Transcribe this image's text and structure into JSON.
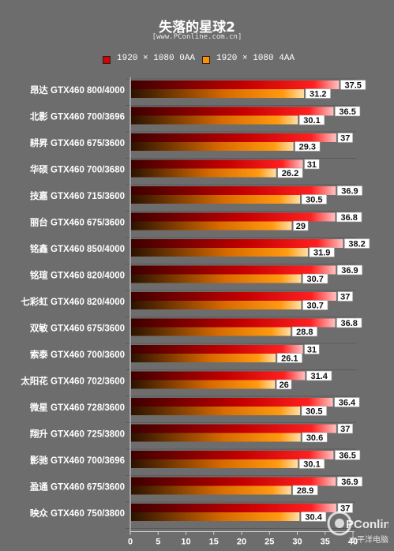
{
  "chart_data": {
    "type": "bar",
    "title": "失落的星球2",
    "subtitle": "[www.PConline.com.cn]",
    "categories": [
      "昂达 GTX460 800/4000",
      "北影 GTX460 700/3696",
      "耕昇 GTX460 675/3600",
      "华硕 GTX460 700/3680",
      "技嘉 GTX460 715/3600",
      "丽台 GTX460 675/3600",
      "铭鑫 GTX460 850/4000",
      "铭瑄 GTX460 820/4000",
      "七彩虹 GTX460 820/4000",
      "双敏 GTX460 675/3600",
      "索泰 GTX460 700/3600",
      "太阳花 GTX460 702/3600",
      "微星 GTX460 728/3600",
      "翔升 GTX460 725/3800",
      "影驰 GTX460 700/3696",
      "盈通 GTX460 675/3600",
      "映众 GTX460 750/3800"
    ],
    "series": [
      {
        "name": "1920 × 1080 0AA",
        "values": [
          37.5,
          36.5,
          37,
          31,
          36.9,
          36.8,
          38.2,
          36.9,
          37,
          36.8,
          31,
          31.4,
          36.4,
          37,
          36.5,
          36.9,
          37
        ]
      },
      {
        "name": "1920 × 1080 4AA",
        "values": [
          31.2,
          30.1,
          29.3,
          26.2,
          30.5,
          29,
          31.9,
          30.7,
          30.7,
          28.8,
          26.1,
          26,
          30.5,
          30.6,
          30.1,
          28.9,
          30.4
        ]
      }
    ],
    "xticks": [
      "0",
      "5",
      "10",
      "15",
      "20",
      "25",
      "30",
      "35",
      "40"
    ],
    "xlim": [
      0,
      40
    ],
    "orientation": "horizontal",
    "legend_position": "top",
    "colors": {
      "panel": "#6d6d6d",
      "red_dark": "#5a0000",
      "red_light": "#ff2a2a",
      "red_end": "#ffb3b3",
      "orange_dark": "#3a1a00",
      "orange_light": "#ff8a00",
      "orange_end": "#ffd79a",
      "label_box": "#ffffff"
    }
  },
  "watermark": {
    "text": "PConline",
    "subtext": "太平洋电脑网"
  }
}
